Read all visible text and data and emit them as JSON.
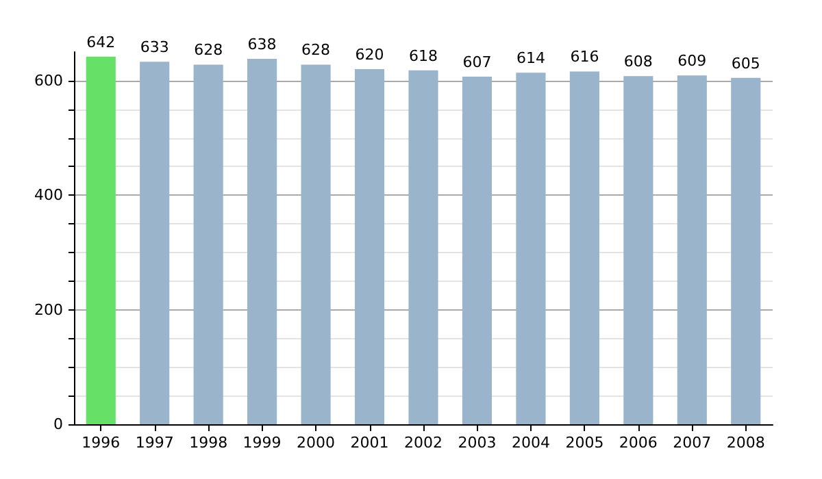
{
  "chart_data": {
    "type": "bar",
    "categories": [
      "1996",
      "1997",
      "1998",
      "1999",
      "2000",
      "2001",
      "2002",
      "2003",
      "2004",
      "2005",
      "2006",
      "2007",
      "2008"
    ],
    "values": [
      642,
      633,
      628,
      638,
      628,
      620,
      618,
      607,
      614,
      616,
      608,
      609,
      605
    ],
    "colors": [
      "#66e066",
      "#9ab4cc",
      "#9ab4cc",
      "#9ab4cc",
      "#9ab4cc",
      "#9ab4cc",
      "#9ab4cc",
      "#9ab4cc",
      "#9ab4cc",
      "#9ab4cc",
      "#9ab4cc",
      "#9ab4cc",
      "#9ab4cc"
    ],
    "ylim": [
      0,
      650
    ],
    "yticks": [
      0,
      {
        "value": 50,
        "label": null
      },
      {
        "value": 100,
        "label": null
      },
      {
        "value": 150,
        "label": null
      },
      200,
      {
        "value": 250,
        "label": null
      },
      {
        "value": 300,
        "label": null
      },
      {
        "value": 350,
        "label": null
      },
      400,
      {
        "value": 450,
        "label": null
      },
      {
        "value": 500,
        "label": null
      },
      {
        "value": 550,
        "label": null
      },
      600
    ],
    "grid": true,
    "data_labels": true
  }
}
